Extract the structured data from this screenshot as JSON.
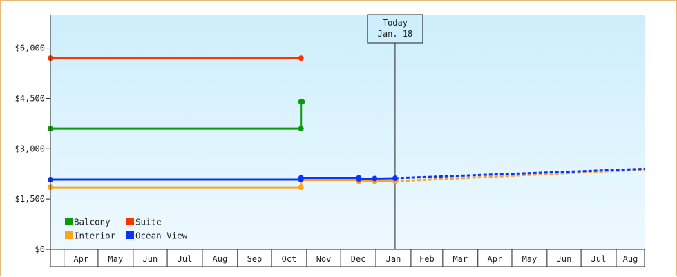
{
  "chart_data": {
    "type": "line",
    "title": "",
    "xlabel": "",
    "ylabel": "",
    "ylim": [
      0,
      7000
    ],
    "y_ticks": [
      {
        "value": 0,
        "label": "$0"
      },
      {
        "value": 1500,
        "label": "$1,500"
      },
      {
        "value": 3000,
        "label": "$3,000"
      },
      {
        "value": 4500,
        "label": "$4,500"
      },
      {
        "value": 6000,
        "label": "$6,000"
      }
    ],
    "x_axis": {
      "start": "2020-03-20",
      "end": "2021-08-26",
      "months": [
        {
          "label": "Apr",
          "date": "2020-04-01"
        },
        {
          "label": "May",
          "date": "2020-05-01"
        },
        {
          "label": "Jun",
          "date": "2020-06-01"
        },
        {
          "label": "Jul",
          "date": "2020-07-01"
        },
        {
          "label": "Aug",
          "date": "2020-08-01"
        },
        {
          "label": "Sep",
          "date": "2020-09-01"
        },
        {
          "label": "Oct",
          "date": "2020-10-01"
        },
        {
          "label": "Nov",
          "date": "2020-11-01"
        },
        {
          "label": "Dec",
          "date": "2020-12-01"
        },
        {
          "label": "Jan",
          "date": "2021-01-01"
        },
        {
          "label": "Feb",
          "date": "2021-02-01"
        },
        {
          "label": "Mar",
          "date": "2021-03-01"
        },
        {
          "label": "Apr",
          "date": "2021-04-01"
        },
        {
          "label": "May",
          "date": "2021-05-01"
        },
        {
          "label": "Jun",
          "date": "2021-06-01"
        },
        {
          "label": "Jul",
          "date": "2021-07-01"
        },
        {
          "label": "Aug",
          "date": "2021-08-01"
        }
      ]
    },
    "today": {
      "label_line1": "Today",
      "label_line2": "Jan. 18",
      "date": "2021-01-18"
    },
    "legend": {
      "placement": "bottom-left"
    },
    "grid": false,
    "series": [
      {
        "name": "Balcony",
        "color": "#0a9a0a",
        "points": [
          {
            "x": "2020-03-20",
            "y": 3600
          },
          {
            "x": "2020-10-27",
            "y": 3600
          },
          {
            "x": "2020-10-27",
            "y": 4400
          },
          {
            "x": "2020-10-28",
            "y": 4400
          }
        ],
        "forecast": []
      },
      {
        "name": "Suite",
        "color": "#ff3300",
        "points": [
          {
            "x": "2020-03-20",
            "y": 5700
          },
          {
            "x": "2020-10-27",
            "y": 5700
          }
        ],
        "forecast": []
      },
      {
        "name": "Interior",
        "color": "#ffa31a",
        "points": [
          {
            "x": "2020-03-20",
            "y": 1850
          },
          {
            "x": "2020-10-27",
            "y": 1850
          },
          {
            "x": "2020-10-27",
            "y": 2070
          },
          {
            "x": "2020-12-17",
            "y": 2070
          },
          {
            "x": "2020-12-17",
            "y": 2030
          },
          {
            "x": "2020-12-31",
            "y": 2030
          },
          {
            "x": "2021-01-18",
            "y": 2030
          }
        ],
        "forecast": [
          {
            "x": "2021-01-18",
            "y": 2030
          },
          {
            "x": "2021-08-26",
            "y": 2380
          }
        ]
      },
      {
        "name": "Ocean View",
        "color": "#0a33ff",
        "points": [
          {
            "x": "2020-03-20",
            "y": 2080
          },
          {
            "x": "2020-10-27",
            "y": 2080
          },
          {
            "x": "2020-10-27",
            "y": 2130
          },
          {
            "x": "2020-12-17",
            "y": 2130
          },
          {
            "x": "2020-12-17",
            "y": 2100
          },
          {
            "x": "2020-12-31",
            "y": 2110
          },
          {
            "x": "2021-01-18",
            "y": 2120
          }
        ],
        "forecast": [
          {
            "x": "2021-01-18",
            "y": 2120
          },
          {
            "x": "2021-08-26",
            "y": 2400
          }
        ]
      }
    ]
  },
  "colors": {
    "frame_border": "#e8b77a",
    "plot_top": "#cdeefc",
    "plot_bottom": "#eef9ff",
    "axis": "#222222"
  }
}
